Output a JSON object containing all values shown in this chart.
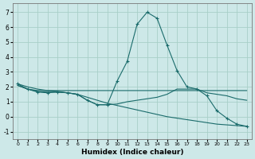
{
  "xlabel": "Humidex (Indice chaleur)",
  "background_color": "#cde8e8",
  "grid_color": "#a8d0c8",
  "line_color": "#1a6b6b",
  "xlim": [
    -0.5,
    23.5
  ],
  "ylim": [
    -1.5,
    7.6
  ],
  "yticks": [
    -1,
    0,
    1,
    2,
    3,
    4,
    5,
    6,
    7
  ],
  "xticks": [
    0,
    1,
    2,
    3,
    4,
    5,
    6,
    7,
    8,
    9,
    10,
    11,
    12,
    13,
    14,
    15,
    16,
    17,
    18,
    19,
    20,
    21,
    22,
    23
  ],
  "series": [
    {
      "x": [
        0,
        1,
        2,
        3,
        4,
        5,
        6,
        7,
        8,
        9,
        10,
        11,
        12,
        13,
        14,
        15,
        16,
        17,
        18,
        19,
        20,
        21,
        22,
        23
      ],
      "y": [
        2.2,
        1.85,
        1.65,
        1.6,
        1.65,
        1.6,
        1.5,
        1.1,
        0.8,
        0.8,
        2.4,
        3.7,
        6.2,
        7.0,
        6.6,
        4.8,
        3.1,
        2.0,
        1.85,
        1.4,
        0.4,
        -0.1,
        -0.5,
        -0.65
      ],
      "marker": true
    },
    {
      "x": [
        0,
        1,
        2,
        3,
        4,
        5,
        6,
        7,
        8,
        9,
        10,
        11,
        12,
        13,
        14,
        15,
        16,
        17,
        18,
        19,
        20,
        21,
        22,
        23
      ],
      "y": [
        2.1,
        1.85,
        1.75,
        1.75,
        1.75,
        1.75,
        1.75,
        1.75,
        1.75,
        1.75,
        1.75,
        1.75,
        1.75,
        1.75,
        1.75,
        1.75,
        1.75,
        1.75,
        1.75,
        1.75,
        1.75,
        1.75,
        1.75,
        1.75
      ],
      "marker": false
    },
    {
      "x": [
        0,
        1,
        2,
        3,
        4,
        5,
        6,
        7,
        8,
        9,
        10,
        11,
        12,
        13,
        14,
        15,
        16,
        17,
        18,
        19,
        20,
        21,
        22,
        23
      ],
      "y": [
        2.1,
        1.85,
        1.7,
        1.65,
        1.65,
        1.6,
        1.5,
        1.1,
        0.8,
        0.8,
        0.85,
        1.0,
        1.1,
        1.2,
        1.3,
        1.5,
        1.85,
        1.85,
        1.85,
        1.6,
        1.5,
        1.4,
        1.2,
        1.1
      ],
      "marker": false
    },
    {
      "x": [
        0,
        1,
        2,
        3,
        4,
        5,
        6,
        7,
        8,
        9,
        10,
        11,
        12,
        13,
        14,
        15,
        16,
        17,
        18,
        19,
        20,
        21,
        22,
        23
      ],
      "y": [
        2.2,
        2.0,
        1.85,
        1.75,
        1.7,
        1.6,
        1.5,
        1.3,
        1.1,
        0.9,
        0.75,
        0.6,
        0.45,
        0.3,
        0.15,
        0.0,
        -0.1,
        -0.2,
        -0.3,
        -0.4,
        -0.5,
        -0.55,
        -0.6,
        -0.65
      ],
      "marker": false
    }
  ]
}
